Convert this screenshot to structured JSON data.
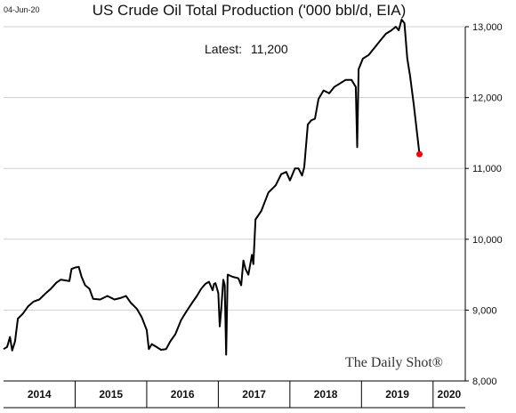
{
  "header": {
    "date": "04-Jun-20",
    "title": "US Crude Oil Total Production ('000 bbl/d, EIA)"
  },
  "annotation": {
    "label": "Latest:",
    "value": "11,200"
  },
  "watermark": "The Daily Shot®",
  "chart_data": {
    "type": "line",
    "title": "US Crude Oil Total Production ('000 bbl/d, EIA)",
    "xlabel": "",
    "ylabel": "",
    "ylim": [
      8000,
      13000
    ],
    "yticks": [
      8000,
      9000,
      10000,
      11000,
      12000,
      13000
    ],
    "ytick_labels": [
      "8,000",
      "9,000",
      "10,000",
      "11,000",
      "12,000",
      "13,000"
    ],
    "xlim": [
      2014.0,
      2020.45
    ],
    "x_ticks_labels": [
      "2014",
      "2015",
      "2016",
      "2017",
      "2018",
      "2019",
      "2020"
    ],
    "x_year_starts": [
      2014,
      2015,
      2016,
      2017,
      2018,
      2019,
      2020
    ],
    "grid": "horizontal",
    "line_color": "#000000",
    "latest_marker_color": "#ff0000",
    "series": [
      {
        "values": [
          [
            2014.0,
            8450
          ],
          [
            2014.05,
            8480
          ],
          [
            2014.09,
            8620
          ],
          [
            2014.12,
            8430
          ],
          [
            2014.16,
            8560
          ],
          [
            2014.2,
            8880
          ],
          [
            2014.27,
            8950
          ],
          [
            2014.34,
            9050
          ],
          [
            2014.42,
            9120
          ],
          [
            2014.5,
            9150
          ],
          [
            2014.58,
            9230
          ],
          [
            2014.66,
            9300
          ],
          [
            2014.74,
            9390
          ],
          [
            2014.8,
            9430
          ],
          [
            2014.86,
            9420
          ],
          [
            2014.92,
            9410
          ],
          [
            2014.95,
            9580
          ],
          [
            2015.0,
            9600
          ],
          [
            2015.05,
            9610
          ],
          [
            2015.09,
            9470
          ],
          [
            2015.14,
            9350
          ],
          [
            2015.2,
            9300
          ],
          [
            2015.25,
            9160
          ],
          [
            2015.35,
            9150
          ],
          [
            2015.45,
            9200
          ],
          [
            2015.55,
            9150
          ],
          [
            2015.63,
            9170
          ],
          [
            2015.71,
            9200
          ],
          [
            2015.78,
            9100
          ],
          [
            2015.86,
            9020
          ],
          [
            2015.93,
            8900
          ],
          [
            2016.0,
            8720
          ],
          [
            2016.03,
            8450
          ],
          [
            2016.07,
            8520
          ],
          [
            2016.12,
            8490
          ],
          [
            2016.2,
            8440
          ],
          [
            2016.27,
            8450
          ],
          [
            2016.33,
            8560
          ],
          [
            2016.4,
            8660
          ],
          [
            2016.48,
            8860
          ],
          [
            2016.56,
            8990
          ],
          [
            2016.64,
            9110
          ],
          [
            2016.7,
            9200
          ],
          [
            2016.76,
            9300
          ],
          [
            2016.82,
            9370
          ],
          [
            2016.87,
            9400
          ],
          [
            2016.92,
            9280
          ],
          [
            2016.94,
            9370
          ],
          [
            2016.96,
            9380
          ],
          [
            2017.0,
            9240
          ],
          [
            2017.02,
            8770
          ],
          [
            2017.04,
            9000
          ],
          [
            2017.07,
            9430
          ],
          [
            2017.09,
            9350
          ],
          [
            2017.11,
            8370
          ],
          [
            2017.13,
            9500
          ],
          [
            2017.2,
            9470
          ],
          [
            2017.28,
            9450
          ],
          [
            2017.32,
            9350
          ],
          [
            2017.35,
            9700
          ],
          [
            2017.38,
            9580
          ],
          [
            2017.42,
            9500
          ],
          [
            2017.47,
            9780
          ],
          [
            2017.49,
            9650
          ],
          [
            2017.52,
            10280
          ],
          [
            2017.6,
            10400
          ],
          [
            2017.7,
            10660
          ],
          [
            2017.8,
            10760
          ],
          [
            2017.88,
            10920
          ],
          [
            2017.95,
            10950
          ],
          [
            2018.0,
            10830
          ],
          [
            2018.07,
            11000
          ],
          [
            2018.12,
            11000
          ],
          [
            2018.17,
            10900
          ],
          [
            2018.2,
            11020
          ],
          [
            2018.25,
            11620
          ],
          [
            2018.3,
            11680
          ],
          [
            2018.35,
            11700
          ],
          [
            2018.4,
            11980
          ],
          [
            2018.47,
            12100
          ],
          [
            2018.55,
            12060
          ],
          [
            2018.62,
            12150
          ],
          [
            2018.7,
            12200
          ],
          [
            2018.78,
            12250
          ],
          [
            2018.86,
            12250
          ],
          [
            2018.92,
            12150
          ],
          [
            2018.94,
            11300
          ],
          [
            2018.96,
            12400
          ],
          [
            2019.02,
            12550
          ],
          [
            2019.1,
            12600
          ],
          [
            2019.18,
            12700
          ],
          [
            2019.26,
            12800
          ],
          [
            2019.34,
            12900
          ],
          [
            2019.42,
            12950
          ],
          [
            2019.48,
            13000
          ],
          [
            2019.52,
            12950
          ],
          [
            2019.56,
            13100
          ],
          [
            2019.6,
            13050
          ],
          [
            2019.64,
            12550
          ],
          [
            2019.68,
            12300
          ],
          [
            2019.73,
            11900
          ],
          [
            2019.77,
            11550
          ],
          [
            2019.81,
            11200
          ]
        ]
      }
    ],
    "latest_point": [
      2019.81,
      11200
    ]
  }
}
